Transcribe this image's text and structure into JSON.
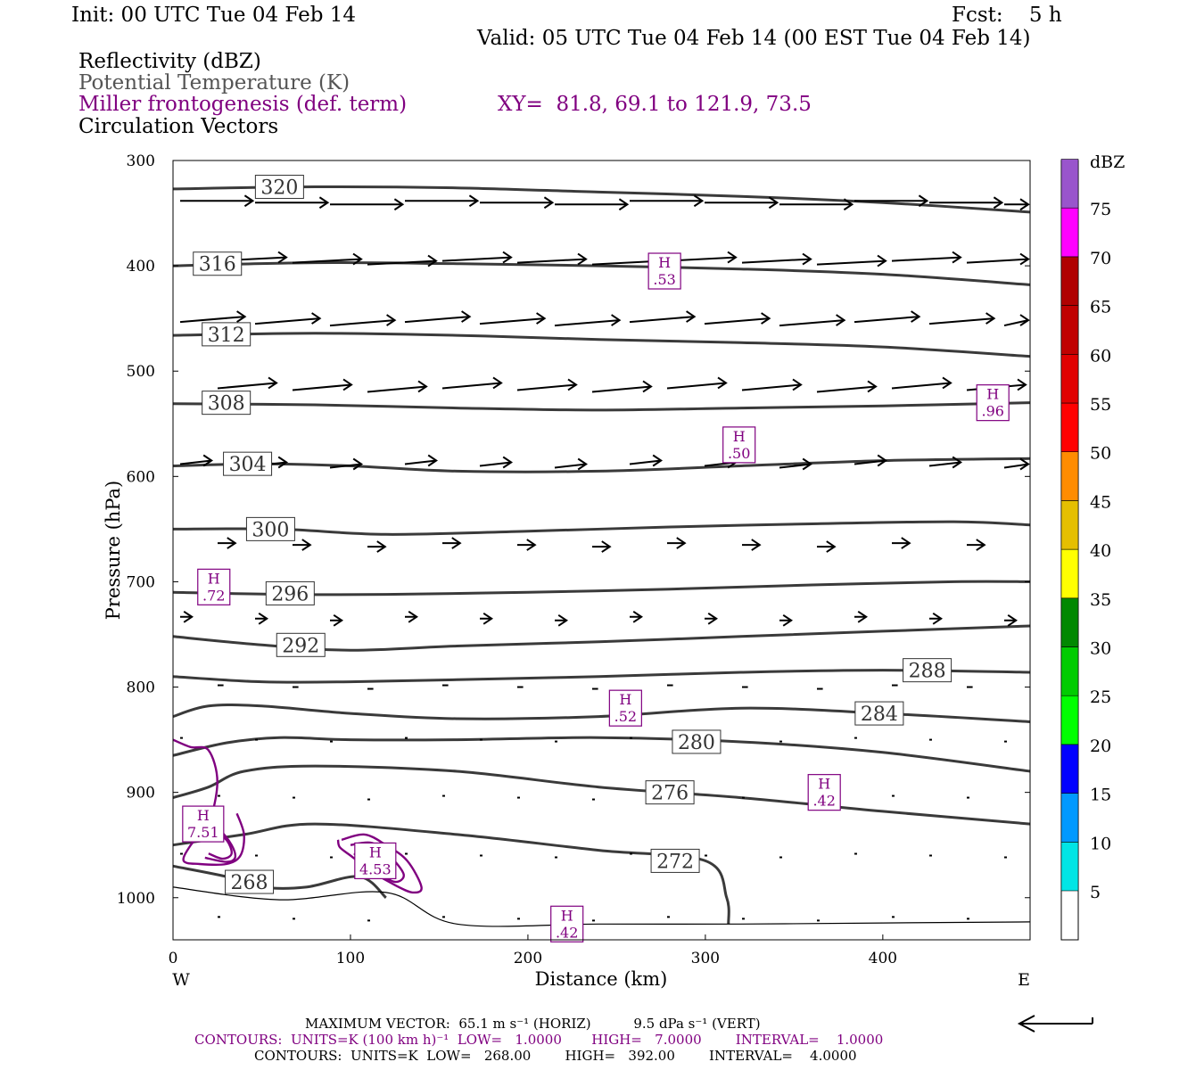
{
  "header": {
    "init": "Init: 00 UTC Tue 04 Feb 14",
    "fcst": "Fcst:    5 h",
    "valid": "Valid: 05 UTC Tue 04 Feb 14 (00 EST Tue 04 Feb 14)"
  },
  "legend_titles": {
    "reflectivity": "Reflectivity (dBZ)",
    "theta": "Potential Temperature (K)",
    "miller": "Miller frontogenesis (def. term)",
    "xy": "XY=  81.8, 69.1 to 121.9, 73.5",
    "vectors": "Circulation Vectors"
  },
  "footer": {
    "max_vector": "MAXIMUM VECTOR:  65.1 m s⁻¹ (HORIZ)          9.5 dPa s⁻¹ (VERT)",
    "contours_purple": "CONTOURS:  UNITS=K (100 km h)⁻¹  LOW=   1.0000       HIGH=   7.0000        INTERVAL=    1.0000",
    "contours_black": "CONTOURS:  UNITS=K  LOW=   268.00        HIGH=   392.00        INTERVAL=    4.0000"
  },
  "colors": {
    "theta": "#3a3a3a",
    "miller": "#800080",
    "vector": "#000000"
  },
  "chart_data": {
    "type": "line",
    "xlabel": "Distance (km)",
    "ylabel": "Pressure (hPa)",
    "xlim": [
      0,
      483
    ],
    "ylim": [
      300,
      1040
    ],
    "x_ticks": [
      0,
      100,
      200,
      300,
      400
    ],
    "y_ticks": [
      300,
      400,
      500,
      600,
      700,
      800,
      900,
      1000
    ],
    "x_end_labels": {
      "left": "W",
      "right": "E"
    },
    "theta_series": [
      {
        "name": "320",
        "x": [
          0,
          80,
          160,
          240,
          320,
          400,
          483
        ],
        "y": [
          327,
          325,
          326,
          330,
          334,
          340,
          349
        ],
        "label_x": 60,
        "label_y": 325
      },
      {
        "name": "316",
        "x": [
          0,
          80,
          160,
          240,
          320,
          400,
          483
        ],
        "y": [
          400,
          397,
          398,
          400,
          403,
          408,
          418
        ],
        "label_x": 25,
        "label_y": 398
      },
      {
        "name": "312",
        "x": [
          0,
          80,
          160,
          240,
          320,
          400,
          483
        ],
        "y": [
          466,
          464,
          466,
          470,
          473,
          477,
          486
        ],
        "label_x": 30,
        "label_y": 465
      },
      {
        "name": "308",
        "x": [
          0,
          80,
          160,
          240,
          320,
          400,
          483
        ],
        "y": [
          531,
          532,
          535,
          537,
          535,
          533,
          530
        ],
        "label_x": 30,
        "label_y": 530
      },
      {
        "name": "304",
        "x": [
          0,
          50,
          100,
          160,
          240,
          320,
          400,
          483
        ],
        "y": [
          590,
          588,
          590,
          595,
          595,
          590,
          585,
          583
        ],
        "label_x": 42,
        "label_y": 588
      },
      {
        "name": "300",
        "x": [
          0,
          60,
          120,
          200,
          280,
          360,
          440,
          483
        ],
        "y": [
          650,
          650,
          655,
          652,
          648,
          645,
          643,
          646
        ],
        "label_x": 55,
        "label_y": 650
      },
      {
        "name": "296",
        "x": [
          0,
          60,
          120,
          200,
          280,
          360,
          440,
          483
        ],
        "y": [
          710,
          712,
          712,
          710,
          707,
          703,
          700,
          700
        ],
        "label_x": 66,
        "label_y": 711
      },
      {
        "name": "292",
        "x": [
          0,
          50,
          100,
          160,
          240,
          320,
          400,
          483
        ],
        "y": [
          752,
          760,
          765,
          761,
          757,
          752,
          747,
          742
        ],
        "label_x": 72,
        "label_y": 760
      },
      {
        "name": "288",
        "x": [
          0,
          50,
          100,
          160,
          240,
          320,
          400,
          483
        ],
        "y": [
          790,
          795,
          795,
          793,
          790,
          786,
          784,
          786
        ],
        "label_x": 425,
        "label_y": 784
      },
      {
        "name": "284",
        "x": [
          0,
          20,
          50,
          100,
          160,
          240,
          320,
          400,
          483
        ],
        "y": [
          828,
          818,
          818,
          825,
          830,
          828,
          820,
          825,
          833
        ],
        "label_x": 398,
        "label_y": 825
      },
      {
        "name": "280",
        "x": [
          0,
          30,
          60,
          100,
          160,
          240,
          320,
          400,
          483
        ],
        "y": [
          865,
          853,
          848,
          850,
          850,
          848,
          852,
          862,
          880
        ],
        "label_x": 295,
        "label_y": 852
      },
      {
        "name": "276",
        "x": [
          0,
          20,
          40,
          80,
          160,
          240,
          320,
          400,
          483
        ],
        "y": [
          905,
          895,
          880,
          875,
          880,
          895,
          905,
          918,
          930
        ],
        "label_x": 280,
        "label_y": 900
      },
      {
        "name": "272",
        "x": [
          0,
          40,
          80,
          160,
          240,
          300,
          312,
          313
        ],
        "y": [
          950,
          940,
          930,
          940,
          955,
          965,
          1000,
          1025
        ],
        "label_x": 283,
        "label_y": 965
      },
      {
        "name": "268",
        "x": [
          0,
          30,
          50,
          75,
          105,
          120
        ],
        "y": [
          970,
          980,
          990,
          990,
          980,
          1000
        ],
        "label_x": 43,
        "label_y": 985
      }
    ],
    "ground_line": {
      "x": [
        0,
        60,
        120,
        160,
        240,
        320,
        400,
        483
      ],
      "y": [
        990,
        1002,
        995,
        1025,
        1025,
        1025,
        1024,
        1023
      ]
    },
    "miller_contours": [
      {
        "x": [
          0,
          10,
          20,
          25,
          20,
          10,
          6,
          15,
          30,
          38,
          40,
          36
        ],
        "y": [
          850,
          857,
          860,
          890,
          930,
          950,
          965,
          968,
          968,
          960,
          940,
          920
        ]
      },
      {
        "x": [
          10,
          18,
          26,
          33,
          35,
          30,
          18
        ],
        "y": [
          930,
          925,
          935,
          950,
          962,
          966,
          962
        ]
      },
      {
        "x": [
          15,
          22,
          30,
          33,
          28,
          20
        ],
        "y": [
          940,
          937,
          945,
          958,
          963,
          958
        ]
      },
      {
        "x": [
          95,
          108,
          120,
          132,
          140,
          135,
          125,
          112,
          100,
          94,
          93
        ],
        "y": [
          945,
          940,
          950,
          965,
          990,
          995,
          988,
          975,
          960,
          952,
          945
        ]
      },
      {
        "x": [
          100,
          112,
          122,
          130,
          125,
          115,
          102
        ],
        "y": [
          950,
          948,
          960,
          978,
          985,
          975,
          958
        ]
      }
    ],
    "miller_maxima": [
      {
        "label": "H",
        "value": ".53",
        "x": 277,
        "y": 405
      },
      {
        "label": "H",
        "value": ".96",
        "x": 462,
        "y": 530
      },
      {
        "label": "H",
        "value": ".50",
        "x": 319,
        "y": 570
      },
      {
        "label": "H",
        "value": ".72",
        "x": 23,
        "y": 705
      },
      {
        "label": "H",
        "value": ".52",
        "x": 255,
        "y": 820
      },
      {
        "label": "H",
        "value": ".42",
        "x": 367,
        "y": 900
      },
      {
        "label": "H",
        "value": "7.51",
        "x": 17,
        "y": 930
      },
      {
        "label": "H",
        "value": "4.53",
        "x": 114,
        "y": 965
      },
      {
        "label": "H",
        "value": ".42",
        "x": 222,
        "y": 1025
      }
    ],
    "vector_rows": [
      {
        "p": 340,
        "u": 37,
        "w": 0
      },
      {
        "p": 397,
        "u": 35,
        "w": 2
      },
      {
        "p": 455,
        "u": 33,
        "w": 3
      },
      {
        "p": 518,
        "u": 30,
        "w": 3
      },
      {
        "p": 590,
        "u": 16,
        "w": 2
      },
      {
        "p": 665,
        "u": 9,
        "w": 0
      },
      {
        "p": 735,
        "u": 6,
        "w": 0
      },
      {
        "p": 800,
        "u": 3,
        "w": 0
      },
      {
        "p": 850,
        "u": 1,
        "w": 0
      },
      {
        "p": 905,
        "u": 0.5,
        "w": 0
      },
      {
        "p": 960,
        "u": 0.5,
        "w": 0
      },
      {
        "p": 1020,
        "u": 0.5,
        "w": 0
      }
    ],
    "colorbar": {
      "title": "dBZ",
      "labels": [
        "5",
        "10",
        "15",
        "20",
        "25",
        "30",
        "35",
        "40",
        "45",
        "50",
        "55",
        "60",
        "65",
        "70",
        "75"
      ],
      "colors": [
        "#00e5e5",
        "#0099ff",
        "#0000ff",
        "#00ff00",
        "#00cc00",
        "#008800",
        "#ffff00",
        "#e5bf00",
        "#ff8c00",
        "#ff0000",
        "#e00000",
        "#c00000",
        "#b00000",
        "#ff00ff",
        "#9955cc"
      ]
    }
  }
}
